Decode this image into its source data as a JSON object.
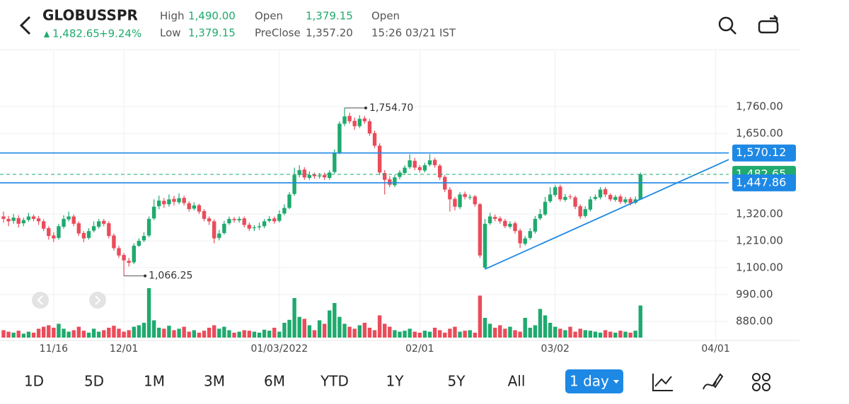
{
  "header": {
    "symbol": "GLOBUSSPR",
    "price": "1,482.65",
    "change": "+9.24%",
    "high_label": "High",
    "high": "1,490.00",
    "low_label": "Low",
    "low": "1,379.15",
    "open_label": "Open",
    "open": "1,379.15",
    "preclose_label": "PreClose",
    "preclose": "1,357.20",
    "status": "Open",
    "time": "15:26 03/21 IST"
  },
  "chart_data": {
    "type": "candlestick",
    "x": [
      0,
      1,
      2,
      3,
      4,
      5,
      6,
      7,
      8,
      9,
      10,
      11,
      12,
      13,
      14,
      15,
      16,
      17,
      18,
      19,
      20,
      21,
      22,
      23,
      24,
      25,
      26,
      27,
      28,
      29,
      30,
      31,
      32,
      33,
      34,
      35,
      36,
      37,
      38,
      39,
      40,
      41,
      42,
      43,
      44,
      45,
      46,
      47,
      48,
      49,
      50,
      51,
      52,
      53,
      54,
      55,
      56,
      57,
      58,
      59,
      60,
      61,
      62,
      63,
      64,
      65,
      66,
      67,
      68,
      69,
      70,
      71,
      72,
      73,
      74,
      75,
      76,
      77,
      78,
      79,
      80,
      81,
      82,
      83,
      84,
      85,
      86,
      87,
      88,
      89,
      90,
      91,
      92,
      93,
      94,
      95,
      96,
      97,
      98,
      99,
      100,
      101,
      102,
      103,
      104,
      105,
      106,
      107,
      108,
      109,
      110,
      111,
      112,
      113,
      114,
      115,
      116,
      117,
      118,
      119,
      120,
      121,
      122,
      123,
      124,
      125,
      126,
      127
    ],
    "open": [
      1310,
      1300,
      1292,
      1303,
      1282,
      1296,
      1310,
      1302,
      1290,
      1262,
      1232,
      1222,
      1268,
      1298,
      1310,
      1282,
      1242,
      1222,
      1252,
      1268,
      1292,
      1282,
      1232,
      1180,
      1152,
      1128,
      1122,
      1190,
      1212,
      1232,
      1302,
      1352,
      1374,
      1360,
      1382,
      1368,
      1386,
      1364,
      1342,
      1356,
      1332,
      1302,
      1290,
      1222,
      1242,
      1282,
      1300,
      1294,
      1302,
      1276,
      1262,
      1266,
      1270,
      1292,
      1302,
      1292,
      1322,
      1345,
      1402,
      1480,
      1502,
      1468,
      1482,
      1474,
      1480,
      1468,
      1492,
      1572,
      1690,
      1722,
      1702,
      1680,
      1712,
      1700,
      1652,
      1600,
      1488,
      1462,
      1438,
      1472,
      1488,
      1512,
      1538,
      1512,
      1498,
      1522,
      1542,
      1518,
      1472,
      1420,
      1382,
      1348,
      1402,
      1388,
      1392,
      1360,
      1100,
      1282,
      1308,
      1302,
      1292,
      1268,
      1282,
      1252,
      1198,
      1222,
      1248,
      1302,
      1318,
      1372,
      1398,
      1432,
      1378,
      1392,
      1388,
      1352,
      1312,
      1338,
      1382,
      1388,
      1422,
      1398,
      1378,
      1392,
      1368,
      1382,
      1366,
      1379.15
    ],
    "high": [
      1330,
      1312,
      1320,
      1315,
      1305,
      1325,
      1318,
      1312,
      1298,
      1270,
      1245,
      1280,
      1315,
      1330,
      1318,
      1290,
      1250,
      1262,
      1290,
      1300,
      1300,
      1290,
      1240,
      1190,
      1160,
      1140,
      1200,
      1220,
      1245,
      1310,
      1380,
      1395,
      1385,
      1400,
      1395,
      1405,
      1395,
      1372,
      1368,
      1362,
      1340,
      1310,
      1298,
      1255,
      1292,
      1310,
      1308,
      1310,
      1310,
      1285,
      1275,
      1285,
      1300,
      1312,
      1310,
      1335,
      1360,
      1410,
      1510,
      1520,
      1512,
      1495,
      1490,
      1488,
      1490,
      1500,
      1585,
      1700,
      1754.7,
      1735,
      1715,
      1725,
      1722,
      1710,
      1662,
      1610,
      1500,
      1475,
      1480,
      1500,
      1520,
      1565,
      1550,
      1520,
      1530,
      1565,
      1550,
      1525,
      1480,
      1430,
      1390,
      1410,
      1412,
      1400,
      1398,
      1365,
      1300,
      1325,
      1318,
      1310,
      1300,
      1290,
      1290,
      1260,
      1230,
      1262,
      1312,
      1340,
      1390,
      1430,
      1440,
      1440,
      1402,
      1400,
      1395,
      1360,
      1352,
      1392,
      1400,
      1430,
      1430,
      1405,
      1398,
      1400,
      1390,
      1390,
      1392,
      1490
    ],
    "low": [
      1285,
      1270,
      1280,
      1265,
      1270,
      1288,
      1290,
      1275,
      1250,
      1215,
      1205,
      1215,
      1260,
      1290,
      1270,
      1230,
      1205,
      1215,
      1245,
      1260,
      1270,
      1220,
      1170,
      1140,
      1066.25,
      1105,
      1115,
      1185,
      1205,
      1225,
      1295,
      1340,
      1345,
      1350,
      1355,
      1360,
      1355,
      1330,
      1335,
      1320,
      1290,
      1275,
      1200,
      1212,
      1235,
      1275,
      1285,
      1285,
      1265,
      1250,
      1250,
      1255,
      1262,
      1285,
      1280,
      1285,
      1315,
      1340,
      1395,
      1470,
      1460,
      1460,
      1465,
      1465,
      1460,
      1460,
      1485,
      1565,
      1680,
      1690,
      1665,
      1672,
      1690,
      1640,
      1590,
      1480,
      1400,
      1430,
      1430,
      1462,
      1480,
      1505,
      1500,
      1490,
      1490,
      1515,
      1510,
      1460,
      1410,
      1330,
      1335,
      1340,
      1380,
      1378,
      1350,
      1140,
      1094,
      1275,
      1290,
      1280,
      1262,
      1260,
      1240,
      1180,
      1190,
      1215,
      1240,
      1295,
      1312,
      1365,
      1390,
      1372,
      1370,
      1380,
      1340,
      1300,
      1305,
      1330,
      1375,
      1380,
      1390,
      1372,
      1370,
      1362,
      1360,
      1355,
      1360,
      1379.15
    ],
    "close": [
      1300,
      1290,
      1305,
      1280,
      1295,
      1310,
      1300,
      1290,
      1260,
      1230,
      1220,
      1270,
      1300,
      1310,
      1280,
      1240,
      1220,
      1250,
      1270,
      1290,
      1280,
      1230,
      1180,
      1150,
      1130,
      1120,
      1190,
      1210,
      1230,
      1300,
      1350,
      1375,
      1360,
      1380,
      1370,
      1385,
      1365,
      1340,
      1355,
      1330,
      1300,
      1290,
      1220,
      1240,
      1280,
      1300,
      1295,
      1300,
      1275,
      1260,
      1265,
      1270,
      1290,
      1300,
      1290,
      1320,
      1345,
      1400,
      1480,
      1500,
      1470,
      1480,
      1475,
      1478,
      1470,
      1490,
      1570,
      1690,
      1720,
      1700,
      1680,
      1710,
      1700,
      1650,
      1600,
      1490,
      1460,
      1440,
      1470,
      1490,
      1510,
      1540,
      1510,
      1500,
      1520,
      1540,
      1520,
      1470,
      1420,
      1380,
      1350,
      1400,
      1390,
      1390,
      1360,
      1150,
      1280,
      1310,
      1300,
      1290,
      1270,
      1280,
      1250,
      1200,
      1220,
      1250,
      1300,
      1320,
      1370,
      1400,
      1430,
      1380,
      1390,
      1390,
      1350,
      1310,
      1340,
      1380,
      1390,
      1420,
      1400,
      1380,
      1390,
      1370,
      1380,
      1365,
      1380,
      1482.65
    ],
    "volume": [
      15,
      12,
      10,
      14,
      8,
      12,
      10,
      18,
      22,
      25,
      20,
      28,
      18,
      12,
      15,
      22,
      14,
      10,
      18,
      12,
      15,
      20,
      24,
      18,
      12,
      15,
      22,
      25,
      30,
      100,
      35,
      20,
      18,
      24,
      15,
      18,
      22,
      12,
      15,
      10,
      14,
      20,
      25,
      18,
      22,
      15,
      10,
      12,
      15,
      14,
      12,
      10,
      16,
      14,
      20,
      12,
      30,
      36,
      80,
      42,
      38,
      25,
      15,
      35,
      28,
      55,
      70,
      42,
      28,
      22,
      18,
      25,
      30,
      20,
      15,
      45,
      28,
      22,
      15,
      12,
      14,
      18,
      12,
      10,
      14,
      12,
      20,
      15,
      10,
      18,
      22,
      12,
      14,
      15,
      10,
      85,
      40,
      28,
      20,
      25,
      18,
      22,
      15,
      12,
      40,
      20,
      25,
      58,
      45,
      30,
      22,
      18,
      15,
      22,
      12,
      18,
      15,
      14,
      12,
      10,
      15,
      12,
      10,
      14,
      12,
      10,
      14,
      65
    ],
    "up_color": "#1faa6e",
    "down_color": "#ea4c5a",
    "xlim": [
      -0.7,
      144.6
    ],
    "ylim": [
      807.6,
      1965.6
    ],
    "xticks": [
      {
        "value": 10,
        "label": "11/16"
      },
      {
        "value": 24,
        "label": "12/01"
      },
      {
        "value": 55,
        "label": "01/03/2022"
      },
      {
        "value": 83,
        "label": "02/01"
      },
      {
        "value": 110,
        "label": "03/02"
      },
      {
        "value": 142,
        "label": "04/01"
      }
    ],
    "yticks": [
      {
        "value": 880,
        "label": "880.00"
      },
      {
        "value": 990,
        "label": "990.00"
      },
      {
        "value": 1100,
        "label": "1,100.00"
      },
      {
        "value": 1210,
        "label": "1,210.00"
      },
      {
        "value": 1320,
        "label": "1,320.00"
      },
      {
        "value": 1650,
        "label": "1,650.00"
      },
      {
        "value": 1760,
        "label": "1,760.00"
      }
    ],
    "grid": true,
    "last_price": {
      "value": 1482.65,
      "label": "1,482.65",
      "color": "#1faa6e"
    },
    "hlines": [
      {
        "value": 1570.12,
        "label": "1,570.12",
        "color": "#1e88e5"
      },
      {
        "value": 1447.86,
        "label": "1,447.86",
        "color": "#1e88e5"
      }
    ],
    "annotations": [
      {
        "x": 68,
        "value": 1754.7,
        "label": "1,754.70"
      },
      {
        "x": 24,
        "value": 1066.25,
        "label": "1,066.25"
      }
    ],
    "trendline": {
      "x": [
        96,
        144.6
      ],
      "values": [
        1094,
        1543
      ],
      "color": "#1e88e5"
    }
  },
  "toolbar": {
    "ranges": [
      "1D",
      "5D",
      "1M",
      "3M",
      "6M",
      "YTD",
      "1Y",
      "5Y",
      "All"
    ],
    "interval": "1 day"
  }
}
